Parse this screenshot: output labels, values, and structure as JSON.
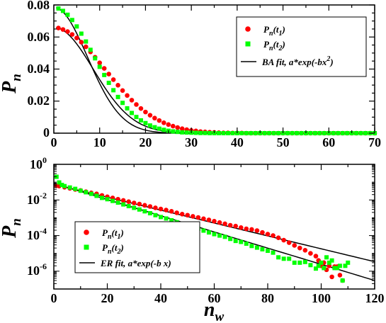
{
  "chart_data": [
    {
      "type": "scatter",
      "ylabel": "P",
      "ylabel_sub": "n",
      "xlim": [
        0,
        70
      ],
      "ylim": [
        0,
        0.08
      ],
      "xticks": [
        "0",
        "10",
        "20",
        "30",
        "40",
        "50",
        "60",
        "70"
      ],
      "yticks": [
        "0",
        "0.02",
        "0.04",
        "0.06",
        "0.08"
      ],
      "legend_position": "top-right",
      "series": [
        {
          "name_main": "P",
          "name_sub": "n",
          "name_arg": "(t",
          "name_argsub": "1",
          "name_close": ")",
          "marker": "circle",
          "color": "#ff0000",
          "fit": {
            "a": 0.066,
            "b": 0.0068
          },
          "x": [
            1,
            2,
            3,
            4,
            5,
            6,
            7,
            8,
            9,
            10,
            11,
            12,
            13,
            14,
            15,
            16,
            17,
            18,
            19,
            20,
            21,
            22,
            23,
            24,
            25,
            26,
            27,
            28,
            29,
            30,
            31,
            32,
            33,
            34,
            35,
            36,
            37,
            38,
            39,
            40,
            41,
            42,
            43,
            44,
            45,
            46,
            47,
            48,
            49,
            50,
            51,
            52,
            53,
            54,
            55,
            56,
            57,
            58,
            59,
            60,
            61,
            62,
            63,
            64,
            65,
            66,
            67,
            68,
            69,
            70
          ],
          "y": [
            0.0656,
            0.0647,
            0.0634,
            0.0616,
            0.0594,
            0.0568,
            0.0539,
            0.0507,
            0.0474,
            0.0439,
            0.0404,
            0.0369,
            0.0334,
            0.0299,
            0.0266,
            0.0235,
            0.0206,
            0.0179,
            0.0154,
            0.0132,
            0.0112,
            0.0094,
            0.0079,
            0.0065,
            0.0054,
            0.0044,
            0.0035,
            0.0028,
            0.0022,
            0.0017,
            0.0014,
            0.001,
            0.0008,
            0.0006,
            0.0005,
            0.0003,
            0.0002,
            0.0002,
            0.0001,
            0.0001,
            0.0001,
            0,
            0,
            0,
            0,
            0,
            0,
            0,
            0,
            0,
            0,
            0,
            0,
            0,
            0,
            0,
            0,
            0,
            0,
            0,
            0,
            0,
            0,
            0,
            0,
            0,
            0,
            0,
            0,
            0
          ]
        },
        {
          "name_main": "P",
          "name_sub": "n",
          "name_arg": "(t",
          "name_argsub": "2",
          "name_close": ")",
          "marker": "square",
          "color": "#00ff00",
          "fit": {
            "a": 0.0785,
            "b": 0.0093
          },
          "x": [
            1,
            2,
            3,
            4,
            5,
            6,
            7,
            8,
            9,
            10,
            11,
            12,
            13,
            14,
            15,
            16,
            17,
            18,
            19,
            20,
            21,
            22,
            23,
            24,
            25,
            26,
            27,
            28,
            29,
            30,
            31,
            32,
            33,
            34,
            35,
            36,
            37,
            38,
            39,
            40,
            41,
            42,
            43,
            44,
            45,
            46,
            47,
            48,
            49,
            50,
            51,
            52,
            53,
            54,
            55,
            56,
            57,
            58,
            59,
            60,
            61,
            62,
            63,
            64,
            65,
            66,
            67,
            68,
            69,
            70
          ],
          "y": [
            0.0778,
            0.0763,
            0.0739,
            0.0706,
            0.0666,
            0.0621,
            0.0572,
            0.052,
            0.0467,
            0.0414,
            0.0363,
            0.0314,
            0.0268,
            0.0226,
            0.0189,
            0.0155,
            0.0126,
            0.0101,
            0.008,
            0.0063,
            0.0048,
            0.0037,
            0.0028,
            0.0021,
            0.0015,
            0.0011,
            0.0008,
            0.0005,
            0.0004,
            0.0003,
            0.0002,
            0.0001,
            0.0001,
            0,
            0,
            0,
            0,
            0,
            0,
            0,
            0,
            0,
            0,
            0,
            0,
            0,
            0,
            0,
            0,
            0,
            0,
            0,
            0,
            0,
            0,
            0,
            0,
            0,
            0,
            0,
            0,
            0,
            0,
            0,
            0,
            0,
            0,
            0,
            0,
            0
          ]
        }
      ],
      "fit_label_main": "BA fit, a*exp(-bx",
      "fit_label_sup": "2",
      "fit_label_close": ")"
    },
    {
      "type": "scatter",
      "yscale": "log",
      "xlabel": "n",
      "xlabel_sub": "w",
      "ylabel": "P",
      "ylabel_sub": "n",
      "xlim": [
        0,
        120
      ],
      "ylim": [
        1e-07,
        1
      ],
      "xticks": [
        "0",
        "20",
        "40",
        "60",
        "80",
        "100",
        "120"
      ],
      "yticks": [
        {
          "base": "10",
          "exp": "0",
          "value": 1
        },
        {
          "base": "10",
          "exp": "-2",
          "value": 0.01
        },
        {
          "base": "10",
          "exp": "-4",
          "value": 0.0001
        },
        {
          "base": "10",
          "exp": "-6",
          "value": 1e-06
        }
      ],
      "legend_position": "bottom-left",
      "series": [
        {
          "name_main": "P",
          "name_sub": "n",
          "name_arg": "(t",
          "name_argsub": "1",
          "name_close": ")",
          "marker": "circle",
          "color": "#ff0000",
          "fit": {
            "a": 0.075,
            "b": 0.0833
          },
          "x": [
            1,
            2,
            4,
            6,
            8,
            10,
            12,
            14,
            16,
            18,
            20,
            22,
            24,
            26,
            28,
            30,
            32,
            34,
            36,
            38,
            40,
            42,
            44,
            46,
            48,
            50,
            52,
            54,
            56,
            58,
            60,
            62,
            64,
            66,
            68,
            70,
            72,
            74,
            76,
            78,
            80,
            82,
            84,
            86,
            88,
            90,
            92,
            94,
            96,
            98,
            99,
            100,
            101,
            102,
            103,
            104,
            105,
            106,
            107,
            108
          ],
          "y": [
            0.063,
            0.06,
            0.052,
            0.045,
            0.039,
            0.034,
            0.029,
            0.025,
            0.022,
            0.018,
            0.015,
            0.013,
            0.011,
            0.0094,
            0.008,
            0.0068,
            0.0059,
            0.005,
            0.0043,
            0.0036,
            0.0031,
            0.0027,
            0.0023,
            0.0019,
            0.0016,
            0.0014,
            0.0012,
            0.00104,
            0.00088,
            0.00076,
            0.00064,
            0.00054,
            0.00046,
            0.00038,
            0.00034,
            0.00028,
            0.00024,
            0.00022,
            0.00019,
            0.00015,
            0.00012,
            0.0001,
            7.5e-05,
            5.5e-05,
            4e-05,
            2.8e-05,
            2e-05,
            1.5e-05,
            1e-05,
            7e-06,
            4e-06,
            2e-06,
            3e-06,
            1.2e-06,
            2e-06,
            4.8e-07,
            1.8e-06,
            1.8e-06,
            6e-07,
            3e-07
          ]
        },
        {
          "name_main": "P",
          "name_sub": "n",
          "name_arg": "(t",
          "name_argsub": "2",
          "name_close": ")",
          "marker": "square",
          "color": "#00ff00",
          "fit": {
            "a": 0.085,
            "b": 0.1046
          },
          "x": [
            1,
            2,
            3,
            4,
            6,
            8,
            10,
            12,
            14,
            16,
            18,
            20,
            22,
            24,
            26,
            28,
            30,
            32,
            34,
            36,
            38,
            40,
            42,
            44,
            46,
            48,
            50,
            52,
            54,
            56,
            58,
            60,
            62,
            64,
            66,
            68,
            70,
            72,
            74,
            76,
            78,
            80,
            82,
            84,
            86,
            88,
            90,
            92,
            94,
            96,
            98,
            99,
            100,
            101,
            102,
            103,
            104,
            105,
            106,
            107,
            108,
            109,
            110
          ],
          "y": [
            0.2,
            0.096,
            0.07,
            0.06,
            0.05,
            0.042,
            0.033,
            0.027,
            0.022,
            0.017,
            0.013,
            0.011,
            0.0088,
            0.0071,
            0.0056,
            0.0045,
            0.0036,
            0.0029,
            0.0023,
            0.0018,
            0.0014,
            0.0011,
            0.00091,
            0.00072,
            0.00056,
            0.00045,
            0.00036,
            0.00029,
            0.00024,
            0.00019,
            0.00015,
            0.00012,
            0.0001,
            8.5e-05,
            6.5e-05,
            5e-05,
            4.4e-05,
            3.5e-05,
            2.6e-05,
            2.1e-05,
            1.7e-05,
            1.4e-05,
            1.1e-05,
            6e-06,
            5e-06,
            5e-06,
            3e-06,
            3e-06,
            3.3e-06,
            2.2e-06,
            1.4e-06,
            2e-06,
            3e-06,
            1.5e-06,
            6e-06,
            3e-06,
            4e-06,
            1.5e-06,
            1.5e-06,
            2e-06,
            3e-07,
            2e-06,
            3e-06
          ]
        }
      ],
      "fit_label_main": "ER fit, a*exp(-b x)",
      "fit_label_sup": "",
      "fit_label_close": ""
    }
  ],
  "colors": {
    "series1": "#ff0000",
    "series2": "#00ff00",
    "fit": "#000000",
    "background": "#ffffff"
  }
}
